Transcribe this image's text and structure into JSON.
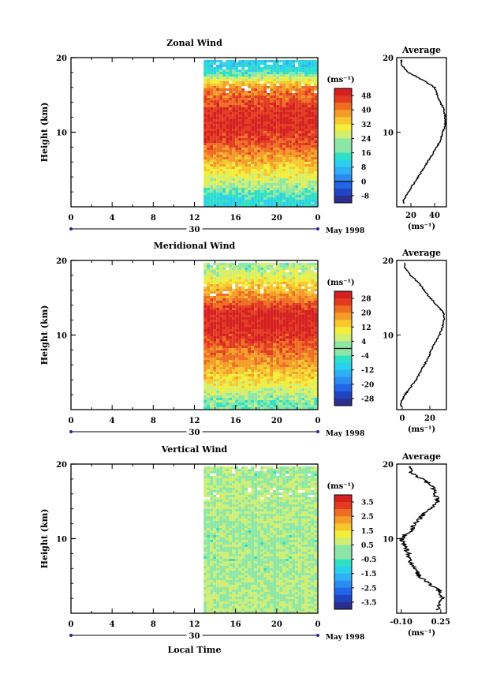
{
  "chart_data": [
    {
      "type": "heatmap",
      "title": "Zonal Wind",
      "ylabel": "Height (km)",
      "ylim": [
        0,
        20
      ],
      "y_ticks": [
        "20",
        "10"
      ],
      "x_ticks": [
        "0",
        "4",
        "8",
        "12",
        "16",
        "20",
        "0"
      ],
      "date_label": "30",
      "date_suffix": "May 1998",
      "data_start_hour": 12.9,
      "colorbar": {
        "unit_label": "(ms⁻¹)",
        "ticks": [
          "48",
          "40",
          "32",
          "24",
          "16",
          "8",
          "0",
          "-8"
        ],
        "range": [
          -12,
          52
        ],
        "zero_line": 0
      },
      "profile": {
        "title": "Average",
        "x_ticks": [
          "20",
          "40"
        ],
        "unit_label": "(ms⁻¹)",
        "xlim": [
          8,
          50
        ],
        "x_tick_values": [
          20,
          40
        ],
        "y_ticks": [
          "20",
          "10"
        ],
        "heights": [
          1,
          2,
          3,
          4,
          5,
          6,
          7,
          8,
          9,
          10,
          11,
          12,
          13,
          14,
          15,
          16,
          17,
          18,
          19
        ],
        "values": [
          14,
          18,
          22,
          26,
          30,
          34,
          38,
          42,
          45,
          47,
          49,
          49,
          48,
          45,
          42,
          40,
          30,
          18,
          12
        ]
      }
    },
    {
      "type": "heatmap",
      "title": "Meridional Wind",
      "ylabel": "Height (km)",
      "ylim": [
        0,
        20
      ],
      "y_ticks": [
        "20",
        "10"
      ],
      "x_ticks": [
        "0",
        "4",
        "8",
        "12",
        "16",
        "20",
        "0"
      ],
      "date_label": "30",
      "date_suffix": "May 1998",
      "data_start_hour": 12.9,
      "colorbar": {
        "unit_label": "(ms⁻¹)",
        "ticks": [
          "28",
          "20",
          "12",
          "4",
          "-4",
          "-12",
          "-20",
          "-28"
        ],
        "range": [
          -32,
          32
        ],
        "zero_line": 0
      },
      "profile": {
        "title": "Average",
        "x_ticks": [
          "0",
          "20"
        ],
        "unit_label": "(ms⁻¹)",
        "xlim": [
          -4,
          32
        ],
        "x_tick_values": [
          0,
          20
        ],
        "y_ticks": [
          "20",
          "10"
        ],
        "heights": [
          1,
          2,
          3,
          4,
          5,
          6,
          7,
          8,
          9,
          10,
          11,
          12,
          13,
          14,
          15,
          16,
          17,
          18,
          19
        ],
        "values": [
          -1,
          2,
          6,
          10,
          13,
          16,
          19,
          21,
          24,
          27,
          29,
          30,
          30,
          25,
          20,
          16,
          12,
          6,
          2
        ]
      }
    },
    {
      "type": "heatmap",
      "title": "Vertical Wind",
      "ylabel": "Height (km)",
      "xlabel": "Local Time",
      "ylim": [
        0,
        20
      ],
      "y_ticks": [
        "20",
        "10"
      ],
      "x_ticks": [
        "0",
        "4",
        "8",
        "12",
        "16",
        "20",
        "0"
      ],
      "date_label": "30",
      "date_suffix": "May 1998",
      "data_start_hour": 12.9,
      "colorbar": {
        "unit_label": "(ms⁻¹)",
        "ticks": [
          "3.5",
          "2.5",
          "1.5",
          "0.5",
          "-0.5",
          "-1.5",
          "-2.5",
          "-3.5"
        ],
        "range": [
          -4,
          4
        ],
        "zero_line": null
      },
      "profile": {
        "title": "Average",
        "x_ticks": [
          "-0.10",
          "0.25"
        ],
        "unit_label": "(ms⁻¹)",
        "xlim": [
          -0.14,
          0.3
        ],
        "x_tick_values": [
          -0.1,
          0.25
        ],
        "y_ticks": [
          "20",
          "10"
        ],
        "heights": [
          1,
          2,
          3,
          4,
          5,
          6,
          7,
          8,
          9,
          10,
          11,
          12,
          13,
          14,
          15,
          16,
          17,
          18,
          19
        ],
        "values": [
          0.22,
          0.26,
          0.24,
          0.14,
          0.06,
          0.02,
          -0.02,
          -0.04,
          -0.06,
          -0.1,
          -0.02,
          0.02,
          0.08,
          0.16,
          0.22,
          0.2,
          0.18,
          0.08,
          -0.02
        ]
      }
    }
  ]
}
